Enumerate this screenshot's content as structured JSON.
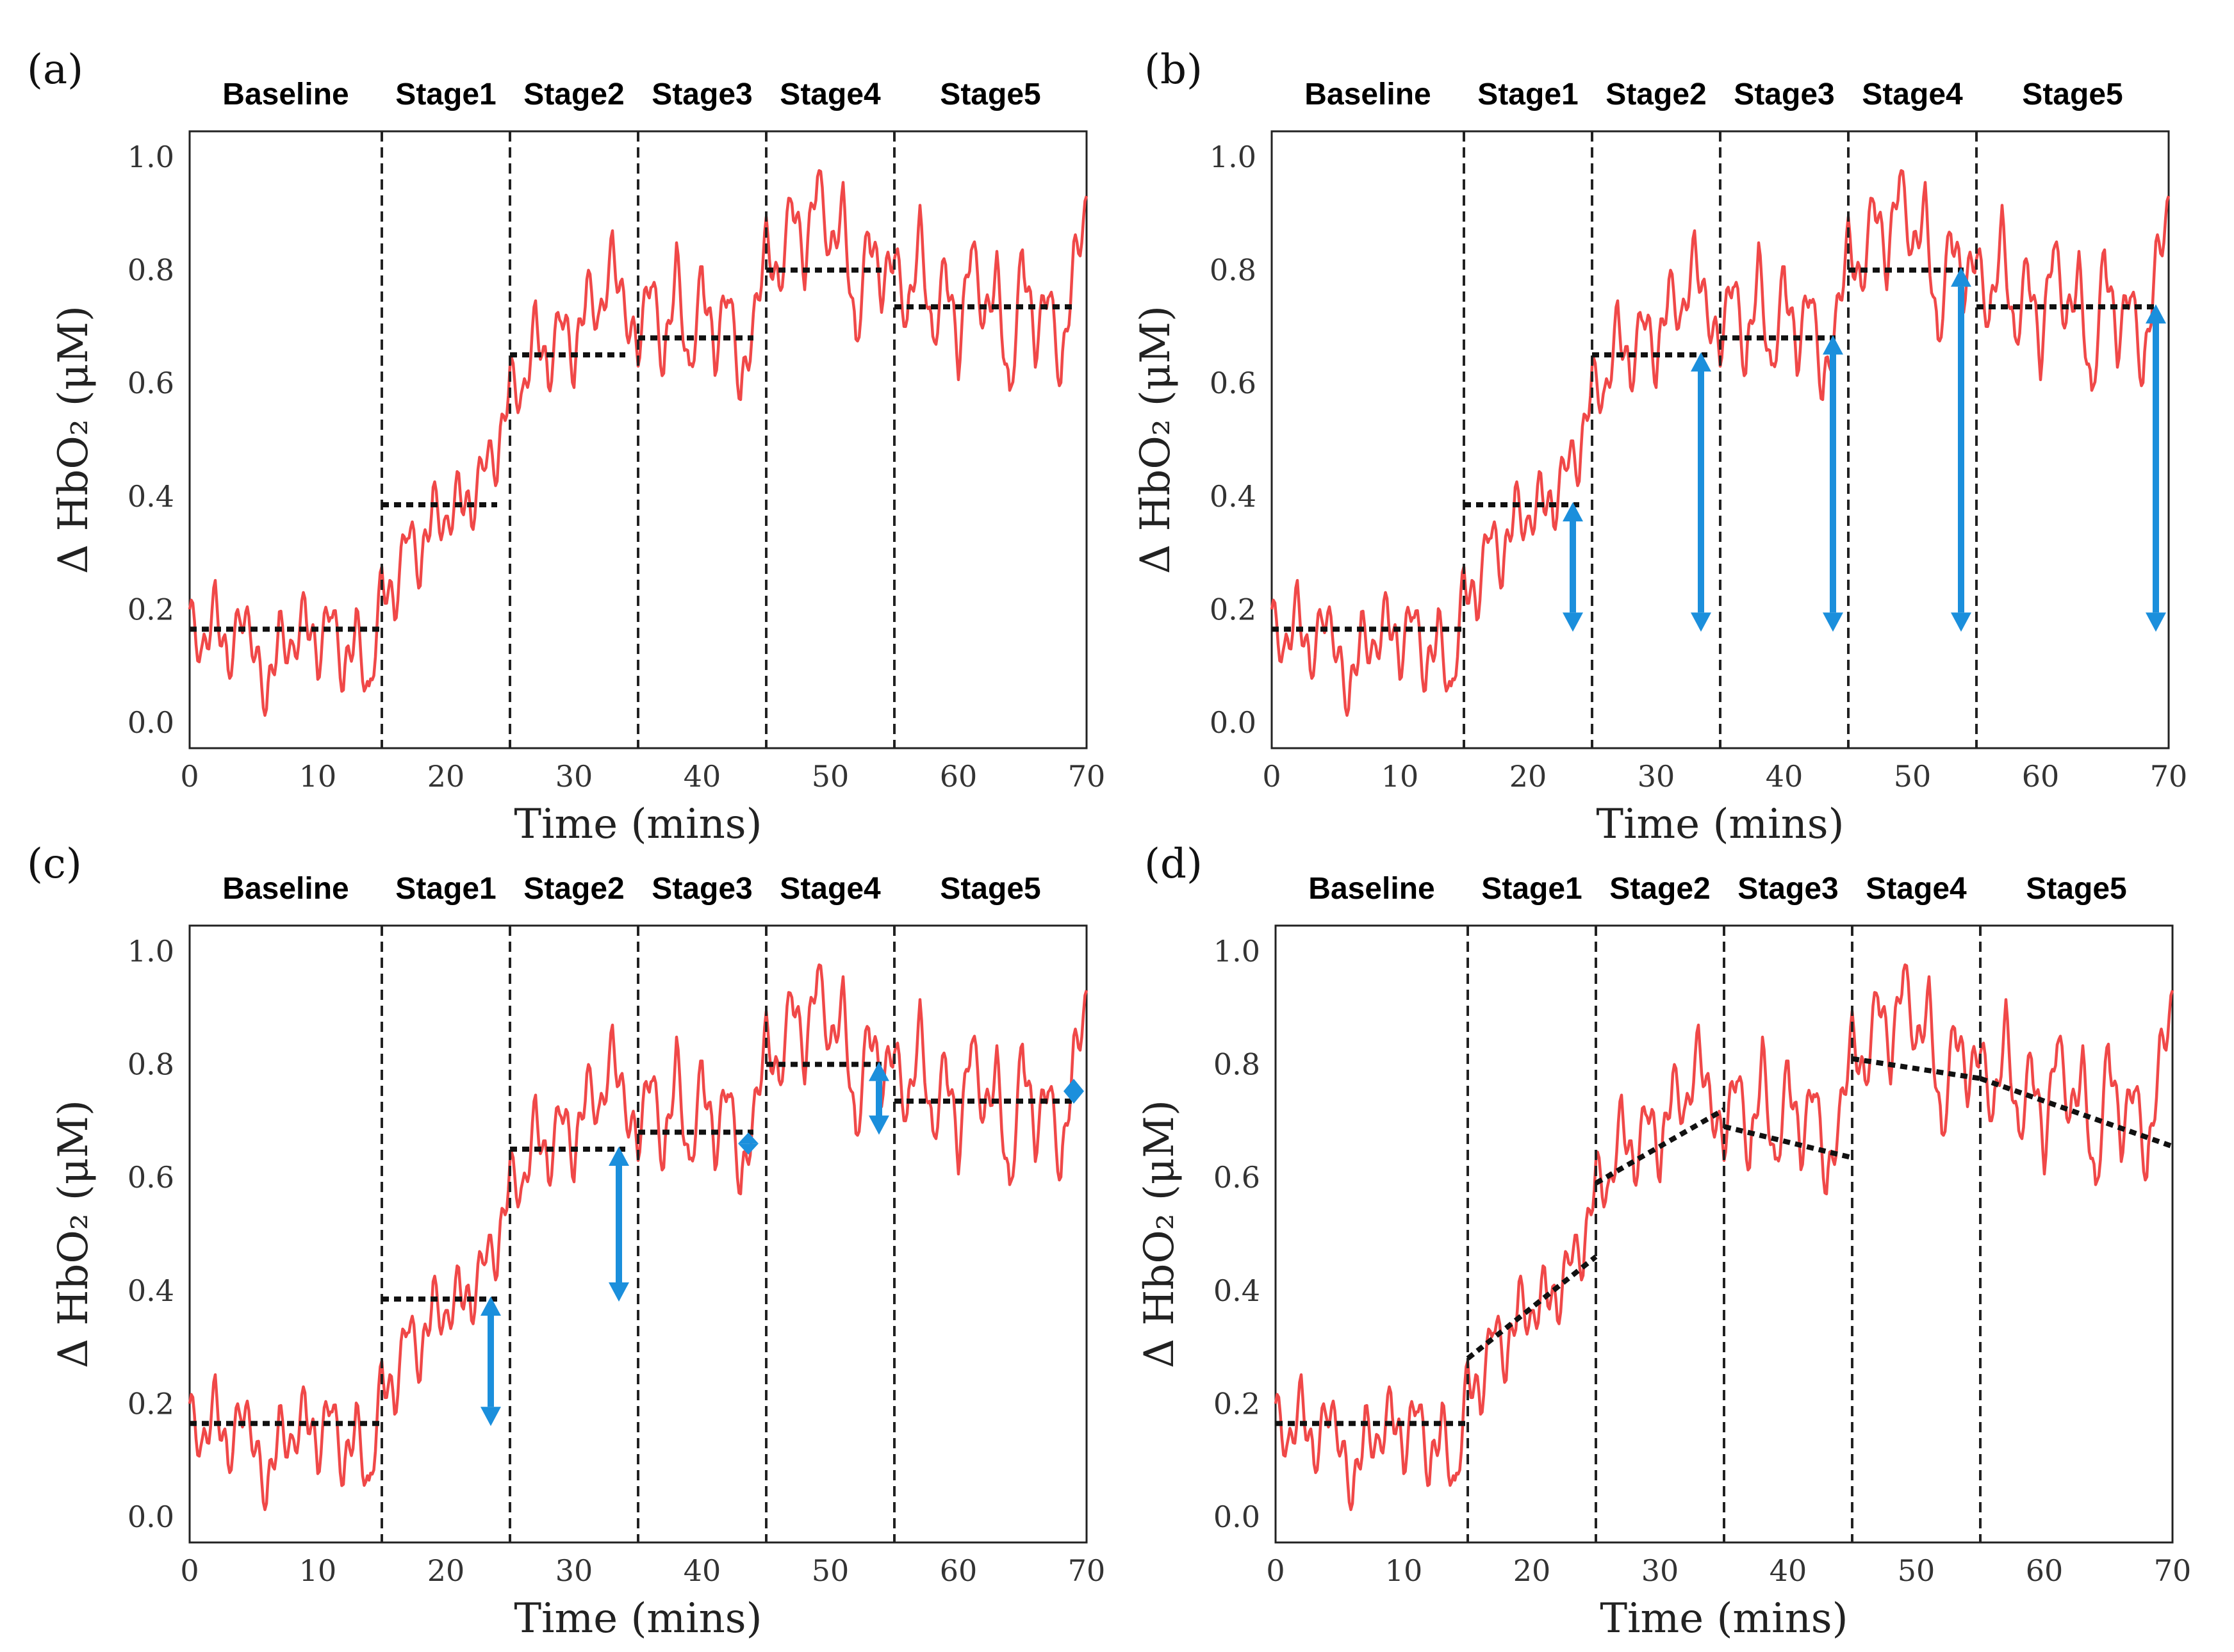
{
  "colors": {
    "signal": "#f04848",
    "mean_line": "#111111",
    "arrow": "#1b8fdc"
  },
  "chart_data": [
    {
      "id": "a",
      "type": "line",
      "panel_label": "(a)",
      "xlabel": "Time (mins)",
      "ylabel": "Δ HbO₂ (μM)",
      "xlim": [
        0,
        70
      ],
      "ylim": [
        0,
        1.0
      ],
      "xticks": [
        "0",
        "10",
        "20",
        "30",
        "40",
        "50",
        "60",
        "70"
      ],
      "yticks": [
        "0.0",
        "0.2",
        "0.4",
        "0.6",
        "0.8",
        "1.0"
      ],
      "stage_boundaries": [
        15,
        25,
        35,
        45,
        55
      ],
      "stages": [
        "Baseline",
        "Stage1",
        "Stage2",
        "Stage3",
        "Stage4",
        "Stage5"
      ],
      "series": [
        {
          "name": "Δ HbO2 signal",
          "x": [
            0,
            1,
            2,
            3,
            4,
            5,
            6,
            7,
            8,
            9,
            10,
            11,
            12,
            13,
            14,
            15,
            16,
            17,
            18,
            19,
            20,
            21,
            22,
            23,
            24,
            25,
            26,
            27,
            28,
            29,
            30,
            31,
            32,
            33,
            34,
            35,
            36,
            37,
            38,
            39,
            40,
            41,
            42,
            43,
            44,
            45,
            46,
            47,
            48,
            49,
            50,
            51,
            52,
            53,
            54,
            55,
            56,
            57,
            58,
            59,
            60,
            61,
            62,
            63,
            64,
            65,
            66,
            67,
            68,
            69,
            70
          ],
          "values": [
            0.2,
            0.11,
            0.22,
            0.09,
            0.2,
            0.14,
            0.03,
            0.17,
            0.11,
            0.21,
            0.1,
            0.22,
            0.07,
            0.18,
            0.03,
            0.26,
            0.2,
            0.36,
            0.26,
            0.4,
            0.33,
            0.42,
            0.36,
            0.48,
            0.45,
            0.62,
            0.56,
            0.72,
            0.6,
            0.74,
            0.62,
            0.78,
            0.7,
            0.84,
            0.72,
            0.66,
            0.8,
            0.62,
            0.82,
            0.6,
            0.8,
            0.64,
            0.78,
            0.58,
            0.7,
            0.86,
            0.76,
            0.94,
            0.8,
            0.98,
            0.82,
            0.92,
            0.66,
            0.88,
            0.76,
            0.84,
            0.7,
            0.88,
            0.66,
            0.82,
            0.64,
            0.86,
            0.7,
            0.8,
            0.56,
            0.84,
            0.66,
            0.78,
            0.6,
            0.82,
            0.9
          ]
        }
      ],
      "means": [
        {
          "x": [
            0,
            15
          ],
          "y": [
            0.165,
            0.165
          ]
        },
        {
          "x": [
            15,
            24
          ],
          "y": [
            0.385,
            0.385
          ]
        },
        {
          "x": [
            25,
            34
          ],
          "y": [
            0.65,
            0.65
          ]
        },
        {
          "x": [
            35,
            44
          ],
          "y": [
            0.68,
            0.68
          ]
        },
        {
          "x": [
            45,
            54
          ],
          "y": [
            0.8,
            0.8
          ]
        },
        {
          "x": [
            55,
            69
          ],
          "y": [
            0.735,
            0.735
          ]
        }
      ],
      "arrows": []
    },
    {
      "id": "b",
      "type": "line",
      "panel_label": "(b)",
      "xlabel": "Time (mins)",
      "ylabel": "Δ HbO₂ (μM)",
      "xlim": [
        0,
        70
      ],
      "ylim": [
        0,
        1.0
      ],
      "xticks": [
        "0",
        "10",
        "20",
        "30",
        "40",
        "50",
        "60",
        "70"
      ],
      "yticks": [
        "0.0",
        "0.2",
        "0.4",
        "0.6",
        "0.8",
        "1.0"
      ],
      "stage_boundaries": [
        15,
        25,
        35,
        45,
        55
      ],
      "stages": [
        "Baseline",
        "Stage1",
        "Stage2",
        "Stage3",
        "Stage4",
        "Stage5"
      ],
      "series": [
        {
          "name": "Δ HbO2 signal",
          "x": [
            0,
            1,
            2,
            3,
            4,
            5,
            6,
            7,
            8,
            9,
            10,
            11,
            12,
            13,
            14,
            15,
            16,
            17,
            18,
            19,
            20,
            21,
            22,
            23,
            24,
            25,
            26,
            27,
            28,
            29,
            30,
            31,
            32,
            33,
            34,
            35,
            36,
            37,
            38,
            39,
            40,
            41,
            42,
            43,
            44,
            45,
            46,
            47,
            48,
            49,
            50,
            51,
            52,
            53,
            54,
            55,
            56,
            57,
            58,
            59,
            60,
            61,
            62,
            63,
            64,
            65,
            66,
            67,
            68,
            69,
            70
          ],
          "values": [
            0.2,
            0.11,
            0.22,
            0.09,
            0.2,
            0.14,
            0.03,
            0.17,
            0.11,
            0.21,
            0.1,
            0.22,
            0.07,
            0.18,
            0.03,
            0.26,
            0.2,
            0.36,
            0.26,
            0.4,
            0.33,
            0.42,
            0.36,
            0.48,
            0.45,
            0.62,
            0.56,
            0.72,
            0.6,
            0.74,
            0.62,
            0.78,
            0.7,
            0.84,
            0.72,
            0.66,
            0.8,
            0.62,
            0.82,
            0.6,
            0.8,
            0.64,
            0.78,
            0.58,
            0.7,
            0.86,
            0.76,
            0.94,
            0.8,
            0.98,
            0.82,
            0.92,
            0.66,
            0.88,
            0.76,
            0.84,
            0.7,
            0.88,
            0.66,
            0.82,
            0.64,
            0.86,
            0.7,
            0.8,
            0.56,
            0.84,
            0.66,
            0.78,
            0.6,
            0.82,
            0.9
          ]
        }
      ],
      "means": [
        {
          "x": [
            0,
            15
          ],
          "y": [
            0.165,
            0.165
          ]
        },
        {
          "x": [
            15,
            24
          ],
          "y": [
            0.385,
            0.385
          ]
        },
        {
          "x": [
            25,
            34
          ],
          "y": [
            0.65,
            0.65
          ]
        },
        {
          "x": [
            35,
            44
          ],
          "y": [
            0.68,
            0.68
          ]
        },
        {
          "x": [
            45,
            54
          ],
          "y": [
            0.8,
            0.8
          ]
        },
        {
          "x": [
            55,
            69
          ],
          "y": [
            0.735,
            0.735
          ]
        }
      ],
      "arrows": [
        {
          "x": 23.5,
          "y0": 0.165,
          "y1": 0.385
        },
        {
          "x": 33.5,
          "y0": 0.165,
          "y1": 0.65
        },
        {
          "x": 43.8,
          "y0": 0.165,
          "y1": 0.68
        },
        {
          "x": 53.8,
          "y0": 0.165,
          "y1": 0.8
        },
        {
          "x": 69.0,
          "y0": 0.165,
          "y1": 0.735
        }
      ]
    },
    {
      "id": "c",
      "type": "line",
      "panel_label": "(c)",
      "xlabel": "Time (mins)",
      "ylabel": "Δ HbO₂ (μM)",
      "xlim": [
        0,
        70
      ],
      "ylim": [
        0,
        1.0
      ],
      "xticks": [
        "0",
        "10",
        "20",
        "30",
        "40",
        "50",
        "60",
        "70"
      ],
      "yticks": [
        "0.0",
        "0.2",
        "0.4",
        "0.6",
        "0.8",
        "1.0"
      ],
      "stage_boundaries": [
        15,
        25,
        35,
        45,
        55
      ],
      "stages": [
        "Baseline",
        "Stage1",
        "Stage2",
        "Stage3",
        "Stage4",
        "Stage5"
      ],
      "series": [
        {
          "name": "Δ HbO2 signal",
          "x": [
            0,
            1,
            2,
            3,
            4,
            5,
            6,
            7,
            8,
            9,
            10,
            11,
            12,
            13,
            14,
            15,
            16,
            17,
            18,
            19,
            20,
            21,
            22,
            23,
            24,
            25,
            26,
            27,
            28,
            29,
            30,
            31,
            32,
            33,
            34,
            35,
            36,
            37,
            38,
            39,
            40,
            41,
            42,
            43,
            44,
            45,
            46,
            47,
            48,
            49,
            50,
            51,
            52,
            53,
            54,
            55,
            56,
            57,
            58,
            59,
            60,
            61,
            62,
            63,
            64,
            65,
            66,
            67,
            68,
            69,
            70
          ],
          "values": [
            0.2,
            0.11,
            0.22,
            0.09,
            0.2,
            0.14,
            0.03,
            0.17,
            0.11,
            0.21,
            0.1,
            0.22,
            0.07,
            0.18,
            0.03,
            0.26,
            0.2,
            0.36,
            0.26,
            0.4,
            0.33,
            0.42,
            0.36,
            0.48,
            0.45,
            0.62,
            0.56,
            0.72,
            0.6,
            0.74,
            0.62,
            0.78,
            0.7,
            0.84,
            0.72,
            0.66,
            0.8,
            0.62,
            0.82,
            0.6,
            0.8,
            0.64,
            0.78,
            0.58,
            0.7,
            0.86,
            0.76,
            0.94,
            0.8,
            0.98,
            0.82,
            0.92,
            0.66,
            0.88,
            0.76,
            0.84,
            0.7,
            0.88,
            0.66,
            0.82,
            0.64,
            0.86,
            0.7,
            0.8,
            0.56,
            0.84,
            0.66,
            0.78,
            0.6,
            0.82,
            0.9
          ]
        }
      ],
      "means": [
        {
          "x": [
            0,
            15
          ],
          "y": [
            0.165,
            0.165
          ]
        },
        {
          "x": [
            15,
            24
          ],
          "y": [
            0.385,
            0.385
          ]
        },
        {
          "x": [
            25,
            34
          ],
          "y": [
            0.65,
            0.65
          ]
        },
        {
          "x": [
            35,
            44
          ],
          "y": [
            0.68,
            0.68
          ]
        },
        {
          "x": [
            45,
            54
          ],
          "y": [
            0.8,
            0.8
          ]
        },
        {
          "x": [
            55,
            69
          ],
          "y": [
            0.735,
            0.735
          ]
        }
      ],
      "arrows": [
        {
          "x": 23.5,
          "y0": 0.165,
          "y1": 0.385
        },
        {
          "x": 33.5,
          "y0": 0.385,
          "y1": 0.65
        },
        {
          "x": 43.6,
          "y0": 0.645,
          "y1": 0.675
        },
        {
          "x": 53.8,
          "y0": 0.68,
          "y1": 0.8
        },
        {
          "x": 69.0,
          "y0": 0.735,
          "y1": 0.77
        }
      ]
    },
    {
      "id": "d",
      "type": "line",
      "panel_label": "(d)",
      "xlabel": "Time (mins)",
      "ylabel": "Δ HbO₂ (μM)",
      "xlim": [
        0,
        70
      ],
      "ylim": [
        0,
        1.0
      ],
      "xticks": [
        "0",
        "10",
        "20",
        "30",
        "40",
        "50",
        "60",
        "70"
      ],
      "yticks": [
        "0.0",
        "0.2",
        "0.4",
        "0.6",
        "0.8",
        "1.0"
      ],
      "stage_boundaries": [
        15,
        25,
        35,
        45,
        55
      ],
      "stages": [
        "Baseline",
        "Stage1",
        "Stage2",
        "Stage3",
        "Stage4",
        "Stage5"
      ],
      "series": [
        {
          "name": "Δ HbO2 signal",
          "x": [
            0,
            1,
            2,
            3,
            4,
            5,
            6,
            7,
            8,
            9,
            10,
            11,
            12,
            13,
            14,
            15,
            16,
            17,
            18,
            19,
            20,
            21,
            22,
            23,
            24,
            25,
            26,
            27,
            28,
            29,
            30,
            31,
            32,
            33,
            34,
            35,
            36,
            37,
            38,
            39,
            40,
            41,
            42,
            43,
            44,
            45,
            46,
            47,
            48,
            49,
            50,
            51,
            52,
            53,
            54,
            55,
            56,
            57,
            58,
            59,
            60,
            61,
            62,
            63,
            64,
            65,
            66,
            67,
            68,
            69,
            70
          ],
          "values": [
            0.2,
            0.11,
            0.22,
            0.09,
            0.2,
            0.14,
            0.03,
            0.17,
            0.11,
            0.21,
            0.1,
            0.22,
            0.07,
            0.18,
            0.03,
            0.26,
            0.2,
            0.36,
            0.26,
            0.4,
            0.33,
            0.42,
            0.36,
            0.48,
            0.45,
            0.62,
            0.56,
            0.72,
            0.6,
            0.74,
            0.62,
            0.78,
            0.7,
            0.84,
            0.72,
            0.66,
            0.8,
            0.62,
            0.82,
            0.6,
            0.8,
            0.64,
            0.78,
            0.58,
            0.7,
            0.86,
            0.76,
            0.94,
            0.8,
            0.98,
            0.82,
            0.92,
            0.66,
            0.88,
            0.76,
            0.84,
            0.7,
            0.88,
            0.66,
            0.82,
            0.64,
            0.86,
            0.7,
            0.8,
            0.56,
            0.84,
            0.66,
            0.78,
            0.6,
            0.82,
            0.9
          ]
        }
      ],
      "means": [
        {
          "x": [
            0,
            15
          ],
          "y": [
            0.165,
            0.165
          ]
        },
        {
          "x": [
            15,
            25
          ],
          "y": [
            0.28,
            0.46
          ]
        },
        {
          "x": [
            25,
            35
          ],
          "y": [
            0.59,
            0.72
          ]
        },
        {
          "x": [
            35,
            45
          ],
          "y": [
            0.69,
            0.635
          ]
        },
        {
          "x": [
            45,
            55
          ],
          "y": [
            0.81,
            0.775
          ]
        },
        {
          "x": [
            55,
            70
          ],
          "y": [
            0.775,
            0.655
          ]
        }
      ],
      "arrows": []
    }
  ]
}
